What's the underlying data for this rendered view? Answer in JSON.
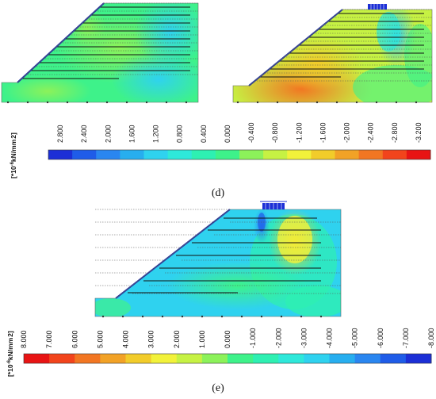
{
  "panel_d": {
    "caption": "(d)",
    "unit_label": "[*10^-6kN/mm^2]",
    "unit_prefix": "[*10",
    "unit_exp": "-6",
    "unit_mid": "kN/mm",
    "unit_sq": "2",
    "unit_suffix": "]",
    "scale_ticks": [
      "2.800",
      "2.400",
      "2.000",
      "1.600",
      "1.200",
      "0.800",
      "0.400",
      "0.000",
      "-0.400",
      "-0.800",
      "-1.200",
      "-1.600",
      "-2.000",
      "-2.400",
      "-2.800",
      "-3.200"
    ],
    "scale_colors": [
      "#1c2fd6",
      "#1f5ce8",
      "#2a86f0",
      "#27aeef",
      "#2fd2ef",
      "#2ee8da",
      "#2ef0b2",
      "#3ef28a",
      "#8cf25a",
      "#c6f243",
      "#f2f23a",
      "#f2cc2a",
      "#f2a226",
      "#f27622",
      "#f2441c",
      "#e81414"
    ],
    "accent_colors": {
      "slope_line": "#1a2ea8",
      "reinforcement": "#111111",
      "footing": "#1c2fd6"
    }
  },
  "panel_e": {
    "caption": "(e)",
    "unit_label": "[*10^-6kN/mm^2]",
    "unit_prefix": "[*10",
    "unit_exp": "-6",
    "unit_mid": "kN/mm",
    "unit_sq": "2",
    "unit_suffix": "]",
    "scale_ticks": [
      "8.000",
      "7.000",
      "6.000",
      "5.000",
      "4.000",
      "3.000",
      "2.000",
      "1.000",
      "0.000",
      "-1.000",
      "-2.000",
      "-3.000",
      "-4.000",
      "-5.000",
      "-6.000",
      "-7.000",
      "-8.000"
    ],
    "scale_colors": [
      "#e81414",
      "#f2441c",
      "#f27622",
      "#f2a226",
      "#f2cc2a",
      "#f2f23a",
      "#c6f243",
      "#8cf25a",
      "#3ef28a",
      "#2ef0b2",
      "#2ee8da",
      "#2fd2ef",
      "#27aeef",
      "#2a86f0",
      "#1f5ce8",
      "#1c2fd6"
    ],
    "accent_colors": {
      "slope_line": "#1a2ea8",
      "reinforcement": "#111111",
      "footing": "#1c2fd6"
    }
  }
}
